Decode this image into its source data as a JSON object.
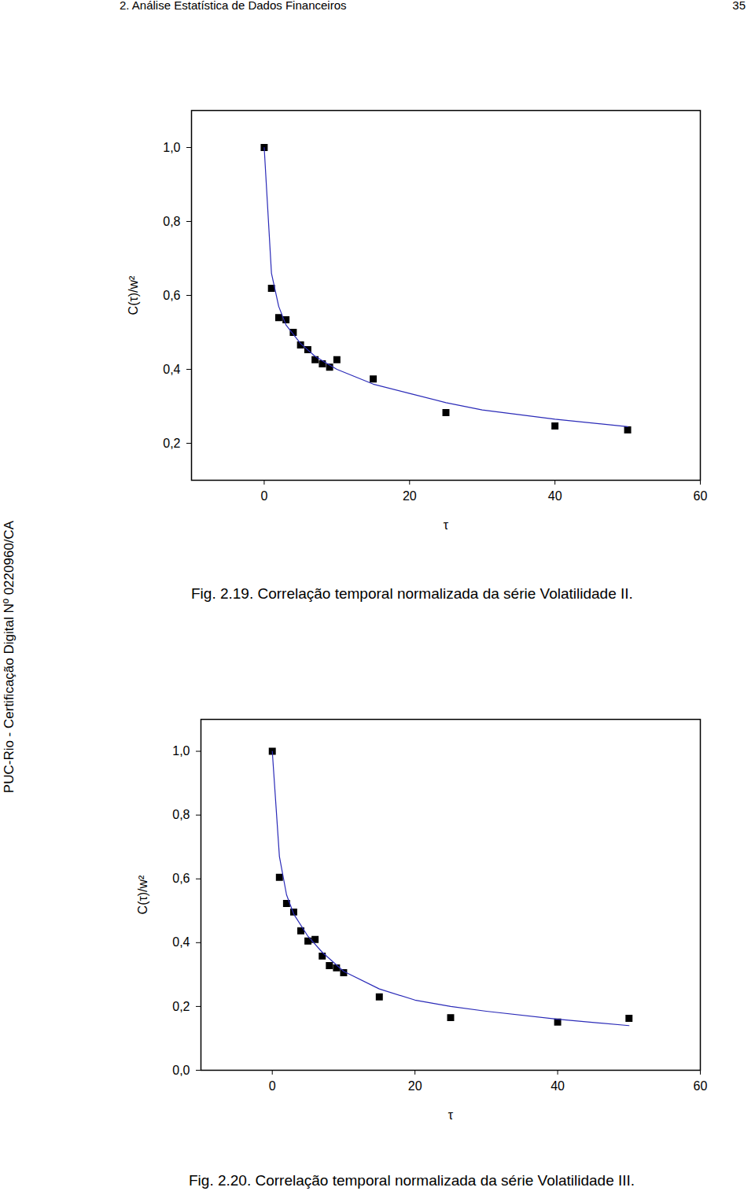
{
  "header": "2. Análise Estatística de Dados Financeiros",
  "page_number": "35",
  "watermark": "PUC-Rio - Certificação Digital Nº 0220960/CA",
  "chart_data": [
    {
      "type": "scatter",
      "caption": "Fig. 2.19. Correlação temporal normalizada da série Volatilidade II.",
      "x_label": "τ",
      "y_label": "C(τ)/w²",
      "xlim": [
        -10,
        60
      ],
      "xticks": [
        0,
        20,
        40,
        60
      ],
      "ylim": [
        0.1,
        1.1
      ],
      "yticks": [
        {
          "value": 0.2,
          "label": "0,2"
        },
        {
          "value": 0.4,
          "label": "0,4"
        },
        {
          "value": 0.6,
          "label": "0,6"
        },
        {
          "value": 0.8,
          "label": "0,8"
        },
        {
          "value": 1.0,
          "label": "1,0"
        }
      ],
      "series": [
        {
          "type": "scatter",
          "marker": "square",
          "color": "#000000",
          "x": [
            0,
            1,
            2,
            3,
            4,
            5,
            6,
            7,
            8,
            9,
            10,
            15,
            25,
            40,
            50
          ],
          "values": [
            1.0,
            0.619,
            0.54,
            0.534,
            0.5,
            0.466,
            0.453,
            0.426,
            0.415,
            0.406,
            0.426,
            0.374,
            0.283,
            0.247,
            0.236
          ]
        },
        {
          "type": "line",
          "line_style": "solid",
          "color": "#2b2bb8",
          "x": [
            0,
            1,
            2,
            3,
            5,
            7,
            10,
            15,
            20,
            25,
            30,
            40,
            50
          ],
          "values": [
            1.0,
            0.66,
            0.57,
            0.52,
            0.47,
            0.435,
            0.4,
            0.36,
            0.335,
            0.31,
            0.29,
            0.265,
            0.245
          ]
        }
      ]
    },
    {
      "type": "scatter",
      "caption": "Fig. 2.20. Correlação temporal normalizada da série Volatilidade III.",
      "x_label": "τ",
      "y_label": "C(τ)/w²",
      "xlim": [
        -10,
        60
      ],
      "xticks": [
        0,
        20,
        40,
        60
      ],
      "ylim": [
        0,
        1.1
      ],
      "yticks": [
        {
          "value": 0,
          "label": "0,0"
        },
        {
          "value": 0.2,
          "label": "0,2"
        },
        {
          "value": 0.4,
          "label": "0,4"
        },
        {
          "value": 0.6,
          "label": "0,6"
        },
        {
          "value": 0.8,
          "label": "0,8"
        },
        {
          "value": 1.0,
          "label": "1,0"
        }
      ],
      "series": [
        {
          "type": "scatter",
          "marker": "square",
          "color": "#000000",
          "x": [
            0,
            1,
            2,
            3,
            4,
            5,
            6,
            7,
            8,
            9,
            10,
            15,
            25,
            40,
            50
          ],
          "values": [
            1.0,
            0.605,
            0.523,
            0.496,
            0.437,
            0.405,
            0.41,
            0.358,
            0.328,
            0.321,
            0.306,
            0.23,
            0.165,
            0.151,
            0.163
          ]
        },
        {
          "type": "line",
          "line_style": "solid",
          "color": "#2b2bb8",
          "x": [
            0,
            1,
            2,
            3,
            5,
            7,
            10,
            15,
            20,
            25,
            30,
            40,
            50
          ],
          "values": [
            1.0,
            0.67,
            0.55,
            0.49,
            0.42,
            0.37,
            0.31,
            0.255,
            0.22,
            0.2,
            0.185,
            0.16,
            0.14
          ]
        }
      ]
    }
  ]
}
